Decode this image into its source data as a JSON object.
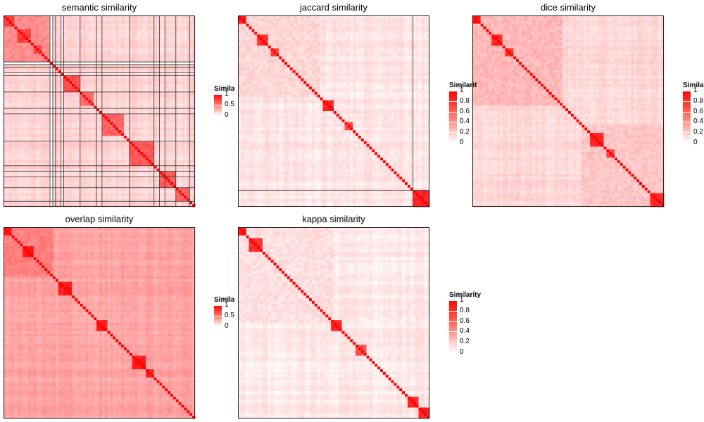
{
  "chart_data": [
    {
      "type": "heatmap",
      "title": "semantic similarity",
      "n": 70,
      "colors": {
        "low": "#ffffff",
        "high": "#ff0000"
      },
      "value_range": [
        0,
        1
      ],
      "background_level": 0.17,
      "clusters": [
        {
          "start": 0,
          "size": 17,
          "level": 0.45
        },
        {
          "start": 0,
          "size": 4,
          "level": 0.75
        },
        {
          "start": 5,
          "size": 5,
          "level": 0.75
        },
        {
          "start": 11,
          "size": 3,
          "level": 0.75
        },
        {
          "start": 22,
          "size": 6,
          "level": 0.7
        },
        {
          "start": 28,
          "size": 5,
          "level": 0.6
        },
        {
          "start": 36,
          "size": 8,
          "level": 0.6
        },
        {
          "start": 46,
          "size": 9,
          "level": 0.65
        },
        {
          "start": 57,
          "size": 6,
          "level": 0.65
        },
        {
          "start": 63,
          "size": 5,
          "level": 0.6
        }
      ],
      "empty_indices": [
        17
      ],
      "cluster_borders": [
        17,
        18,
        19,
        21,
        22,
        28,
        34,
        36,
        46,
        55,
        57,
        59,
        63,
        68
      ],
      "legend": {
        "title": "Similarity",
        "ticks": [
          "1",
          "0.5",
          "0"
        ]
      }
    },
    {
      "type": "heatmap",
      "title": "jaccard similarity",
      "n": 70,
      "colors": {
        "low": "#ffffff",
        "high": "#ff0000"
      },
      "value_range": [
        0,
        1
      ],
      "background_level": 0.1,
      "clusters": [
        {
          "start": 0,
          "size": 30,
          "level": 0.16
        },
        {
          "start": 0,
          "size": 3,
          "level": 0.9
        },
        {
          "start": 7,
          "size": 4,
          "level": 0.8
        },
        {
          "start": 12,
          "size": 3,
          "level": 0.75
        },
        {
          "start": 31,
          "size": 4,
          "level": 0.85
        },
        {
          "start": 39,
          "size": 3,
          "level": 0.7
        },
        {
          "start": 64,
          "size": 6,
          "level": 0.85
        }
      ],
      "empty_indices": [],
      "cluster_borders": [
        64
      ],
      "legend": {
        "title": "Similarity",
        "ticks": [
          "1",
          "0.8",
          "0.6",
          "0.4",
          "0.2",
          "0"
        ]
      }
    },
    {
      "type": "heatmap",
      "title": "dice similarity",
      "n": 70,
      "colors": {
        "low": "#ffffff",
        "high": "#ff0000"
      },
      "value_range": [
        0,
        1
      ],
      "background_level": 0.15,
      "clusters": [
        {
          "start": 0,
          "size": 33,
          "level": 0.28
        },
        {
          "start": 40,
          "size": 30,
          "level": 0.22
        },
        {
          "start": 0,
          "size": 3,
          "level": 0.9
        },
        {
          "start": 7,
          "size": 4,
          "level": 0.85
        },
        {
          "start": 12,
          "size": 3,
          "level": 0.8
        },
        {
          "start": 43,
          "size": 5,
          "level": 0.85
        },
        {
          "start": 49,
          "size": 3,
          "level": 0.75
        },
        {
          "start": 65,
          "size": 5,
          "level": 0.85
        }
      ],
      "empty_indices": [],
      "cluster_borders": [],
      "legend": {
        "title": "Similarity",
        "ticks": [
          "1",
          "0.8",
          "0.6",
          "0.4",
          "0.2",
          "0"
        ]
      }
    },
    {
      "type": "heatmap",
      "title": "overlap similarity",
      "n": 70,
      "colors": {
        "low": "#ffffff",
        "high": "#ff0000"
      },
      "value_range": [
        0,
        1
      ],
      "background_level": 0.35,
      "clusters": [
        {
          "start": 0,
          "size": 18,
          "level": 0.5
        },
        {
          "start": 0,
          "size": 3,
          "level": 0.9
        },
        {
          "start": 7,
          "size": 4,
          "level": 0.9
        },
        {
          "start": 20,
          "size": 5,
          "level": 0.9
        },
        {
          "start": 34,
          "size": 4,
          "level": 0.9
        },
        {
          "start": 47,
          "size": 5,
          "level": 0.9
        },
        {
          "start": 52,
          "size": 3,
          "level": 0.85
        }
      ],
      "empty_indices": [],
      "cluster_borders": [],
      "legend": {
        "title": "Similarity",
        "ticks": [
          "1",
          "0.5",
          "0"
        ]
      }
    },
    {
      "type": "heatmap",
      "title": "kappa similarity",
      "n": 70,
      "colors": {
        "low": "#ffffff",
        "high": "#ff0000"
      },
      "value_range": [
        0,
        1
      ],
      "background_level": 0.08,
      "clusters": [
        {
          "start": 0,
          "size": 35,
          "level": 0.12
        },
        {
          "start": 0,
          "size": 3,
          "level": 0.9
        },
        {
          "start": 4,
          "size": 5,
          "level": 0.8
        },
        {
          "start": 34,
          "size": 4,
          "level": 0.85
        },
        {
          "start": 43,
          "size": 4,
          "level": 0.7
        },
        {
          "start": 62,
          "size": 4,
          "level": 0.85
        },
        {
          "start": 66,
          "size": 4,
          "level": 0.85
        }
      ],
      "empty_indices": [],
      "cluster_borders": [],
      "legend": {
        "title": "Similarity",
        "ticks": [
          "1",
          "0.8",
          "0.6",
          "0.4",
          "0.2",
          "0"
        ]
      }
    }
  ]
}
